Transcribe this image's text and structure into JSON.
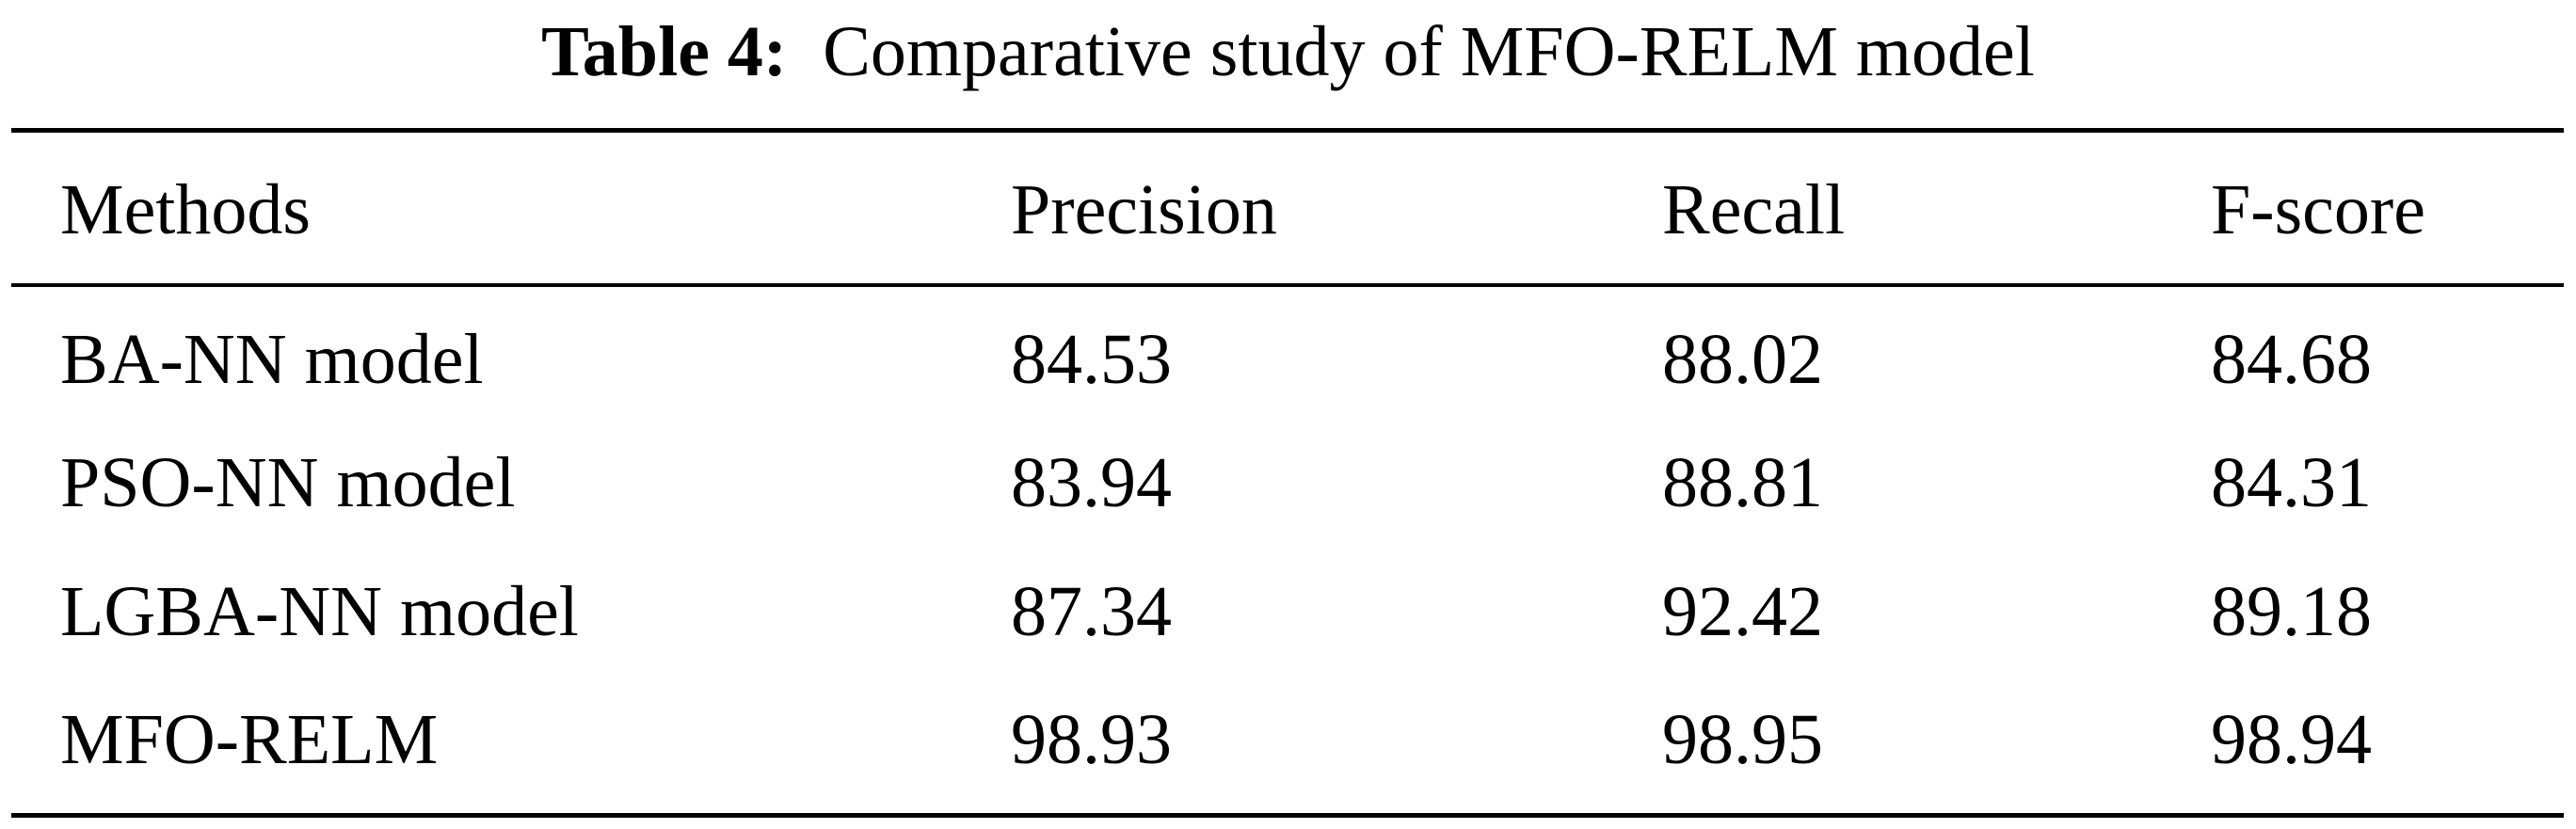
{
  "caption": {
    "label": "Table 4:",
    "text": "Comparative study of MFO-RELM model"
  },
  "table": {
    "headers": [
      "Methods",
      "Precision",
      "Recall",
      "F-score"
    ],
    "rows": [
      [
        "BA-NN model",
        "84.53",
        "88.02",
        "84.68"
      ],
      [
        "PSO-NN model",
        "83.94",
        "88.81",
        "84.31"
      ],
      [
        "LGBA-NN model",
        "87.34",
        "92.42",
        "89.18"
      ],
      [
        "MFO-RELM",
        "98.93",
        "98.95",
        "98.94"
      ]
    ]
  }
}
